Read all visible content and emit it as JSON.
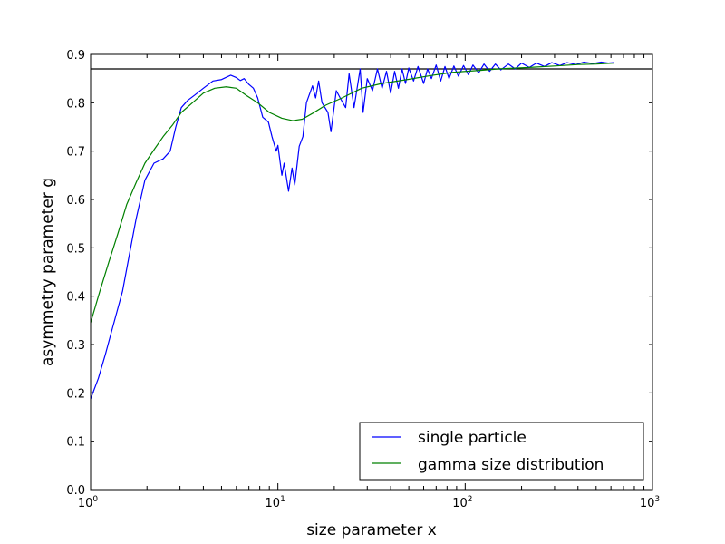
{
  "chart_data": {
    "type": "line",
    "title": "",
    "xlabel": "size parameter x",
    "ylabel": "asymmetry parameter g",
    "xscale": "log",
    "xlim": [
      1,
      1000
    ],
    "ylim": [
      0.0,
      0.9
    ],
    "x_ticks": [
      {
        "base": "10",
        "exp": "0",
        "value": 1
      },
      {
        "base": "10",
        "exp": "1",
        "value": 10
      },
      {
        "base": "10",
        "exp": "2",
        "value": 100
      },
      {
        "base": "10",
        "exp": "3",
        "value": 1000
      }
    ],
    "y_ticks": [
      "0.0",
      "0.1",
      "0.2",
      "0.3",
      "0.4",
      "0.5",
      "0.6",
      "0.7",
      "0.8",
      "0.9"
    ],
    "grid": false,
    "legend_position": "bottom-right",
    "reference_line": {
      "y": 0.87,
      "color": "#000000"
    },
    "series": [
      {
        "name": "single particle",
        "color": "#0000ff",
        "points": [
          [
            1,
            0.1875
          ],
          [
            1.1,
            0.23
          ],
          [
            1.2,
            0.28
          ],
          [
            1.3,
            0.33
          ],
          [
            1.48,
            0.41
          ],
          [
            1.6,
            0.48
          ],
          [
            1.75,
            0.56
          ],
          [
            1.95,
            0.64
          ],
          [
            2.18,
            0.675
          ],
          [
            2.44,
            0.684
          ],
          [
            2.66,
            0.7
          ],
          [
            2.85,
            0.75
          ],
          [
            3.05,
            0.79
          ],
          [
            3.3,
            0.805
          ],
          [
            3.6,
            0.816
          ],
          [
            4.0,
            0.83
          ],
          [
            4.5,
            0.845
          ],
          [
            5.0,
            0.848
          ],
          [
            5.6,
            0.857
          ],
          [
            6.0,
            0.852
          ],
          [
            6.3,
            0.846
          ],
          [
            6.6,
            0.85
          ],
          [
            7.0,
            0.838
          ],
          [
            7.4,
            0.83
          ],
          [
            7.8,
            0.81
          ],
          [
            8.3,
            0.77
          ],
          [
            8.6,
            0.765
          ],
          [
            8.9,
            0.76
          ],
          [
            9.3,
            0.73
          ],
          [
            9.8,
            0.7
          ],
          [
            10.0,
            0.712
          ],
          [
            10.5,
            0.65
          ],
          [
            10.8,
            0.675
          ],
          [
            11.4,
            0.617
          ],
          [
            11.9,
            0.665
          ],
          [
            12.3,
            0.63
          ],
          [
            13.0,
            0.71
          ],
          [
            13.6,
            0.73
          ],
          [
            14.2,
            0.8
          ],
          [
            15.3,
            0.835
          ],
          [
            15.9,
            0.81
          ],
          [
            16.5,
            0.845
          ],
          [
            17.2,
            0.8
          ],
          [
            18.5,
            0.78
          ],
          [
            19.2,
            0.74
          ],
          [
            20.5,
            0.825
          ],
          [
            21.5,
            0.81
          ],
          [
            23,
            0.79
          ],
          [
            24,
            0.86
          ],
          [
            25.5,
            0.79
          ],
          [
            27.5,
            0.87
          ],
          [
            28.5,
            0.78
          ],
          [
            30,
            0.85
          ],
          [
            32,
            0.825
          ],
          [
            34,
            0.87
          ],
          [
            36,
            0.83
          ],
          [
            38,
            0.865
          ],
          [
            40,
            0.82
          ],
          [
            42,
            0.865
          ],
          [
            44,
            0.83
          ],
          [
            46,
            0.87
          ],
          [
            48,
            0.84
          ],
          [
            50,
            0.872
          ],
          [
            53,
            0.845
          ],
          [
            56,
            0.875
          ],
          [
            60,
            0.84
          ],
          [
            63,
            0.87
          ],
          [
            66,
            0.85
          ],
          [
            70,
            0.878
          ],
          [
            74,
            0.845
          ],
          [
            78,
            0.875
          ],
          [
            82,
            0.85
          ],
          [
            87,
            0.876
          ],
          [
            92,
            0.855
          ],
          [
            98,
            0.877
          ],
          [
            104,
            0.858
          ],
          [
            110,
            0.878
          ],
          [
            118,
            0.862
          ],
          [
            126,
            0.88
          ],
          [
            135,
            0.865
          ],
          [
            145,
            0.88
          ],
          [
            155,
            0.868
          ],
          [
            170,
            0.88
          ],
          [
            185,
            0.87
          ],
          [
            200,
            0.882
          ],
          [
            220,
            0.873
          ],
          [
            240,
            0.882
          ],
          [
            265,
            0.875
          ],
          [
            290,
            0.883
          ],
          [
            320,
            0.877
          ],
          [
            350,
            0.883
          ],
          [
            390,
            0.879
          ],
          [
            430,
            0.884
          ],
          [
            480,
            0.881
          ],
          [
            530,
            0.884
          ],
          [
            580,
            0.882
          ],
          [
            620,
            0.883
          ]
        ]
      },
      {
        "name": "gamma size distribution",
        "color": "#008000",
        "points": [
          [
            1,
            0.345
          ],
          [
            1.12,
            0.41
          ],
          [
            1.25,
            0.47
          ],
          [
            1.4,
            0.53
          ],
          [
            1.56,
            0.59
          ],
          [
            1.75,
            0.635
          ],
          [
            1.95,
            0.675
          ],
          [
            2.2,
            0.705
          ],
          [
            2.44,
            0.73
          ],
          [
            2.75,
            0.755
          ],
          [
            3.05,
            0.78
          ],
          [
            3.5,
            0.8
          ],
          [
            4.0,
            0.82
          ],
          [
            4.6,
            0.83
          ],
          [
            5.3,
            0.833
          ],
          [
            6.0,
            0.83
          ],
          [
            6.8,
            0.815
          ],
          [
            7.8,
            0.8
          ],
          [
            9.0,
            0.78
          ],
          [
            10.5,
            0.768
          ],
          [
            12,
            0.763
          ],
          [
            13.5,
            0.766
          ],
          [
            15.3,
            0.778
          ],
          [
            18,
            0.795
          ],
          [
            22,
            0.81
          ],
          [
            28,
            0.83
          ],
          [
            36,
            0.84
          ],
          [
            49,
            0.848
          ],
          [
            65,
            0.856
          ],
          [
            86,
            0.863
          ],
          [
            120,
            0.867
          ],
          [
            150,
            0.87
          ],
          [
            220,
            0.873
          ],
          [
            300,
            0.876
          ],
          [
            400,
            0.879
          ],
          [
            500,
            0.88
          ],
          [
            620,
            0.882
          ]
        ]
      }
    ]
  }
}
